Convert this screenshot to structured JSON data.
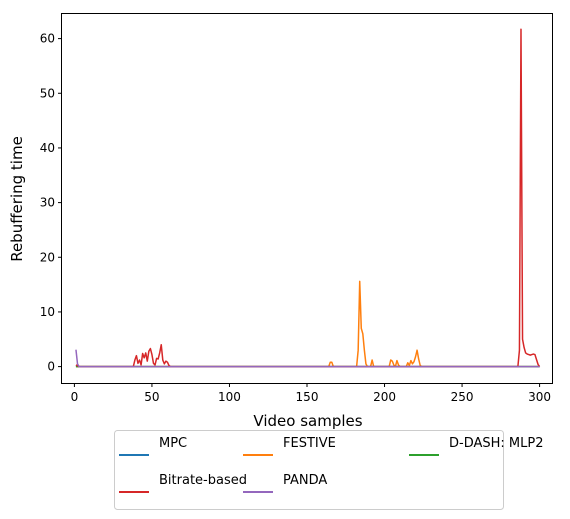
{
  "chart_data": {
    "type": "line",
    "title": "",
    "xlabel": "Video samples",
    "ylabel": "Rebuffering time",
    "xlim": [
      -8,
      308
    ],
    "ylim": [
      -3,
      64.5
    ],
    "xticks": [
      0,
      50,
      100,
      150,
      200,
      250,
      300
    ],
    "yticks": [
      0,
      10,
      20,
      30,
      40,
      50,
      60
    ],
    "grid": false,
    "legend_position": "below plot, centered, 3 columns",
    "series": [
      {
        "name": "MPC",
        "color": "#1f77b4",
        "points": [
          [
            1,
            0.2
          ],
          [
            3,
            0
          ],
          [
            300,
            0
          ]
        ]
      },
      {
        "name": "FESTIVE",
        "color": "#ff7f0e",
        "points": [
          [
            1,
            0
          ],
          [
            164,
            0
          ],
          [
            165,
            0.8
          ],
          [
            166,
            0.8
          ],
          [
            167,
            0
          ],
          [
            182,
            0
          ],
          [
            183,
            3
          ],
          [
            184,
            15.6
          ],
          [
            185,
            7
          ],
          [
            186,
            6
          ],
          [
            187,
            3
          ],
          [
            188,
            0.5
          ],
          [
            189,
            0
          ],
          [
            191,
            0
          ],
          [
            192,
            1.2
          ],
          [
            193,
            0
          ],
          [
            203,
            0
          ],
          [
            204,
            1.2
          ],
          [
            205,
            1
          ],
          [
            206,
            0.3
          ],
          [
            207,
            0
          ],
          [
            208,
            1.1
          ],
          [
            209,
            0.3
          ],
          [
            210,
            0
          ],
          [
            214,
            0
          ],
          [
            215,
            0.7
          ],
          [
            216,
            0.2
          ],
          [
            217,
            1.1
          ],
          [
            218,
            0.5
          ],
          [
            219,
            0.9
          ],
          [
            220,
            1.8
          ],
          [
            221,
            3
          ],
          [
            222,
            1.4
          ],
          [
            223,
            0.2
          ],
          [
            224,
            0
          ],
          [
            300,
            0
          ]
        ]
      },
      {
        "name": "D-DASH: MLP2",
        "color": "#2ca02c",
        "points": [
          [
            1,
            0
          ],
          [
            300,
            0
          ]
        ]
      },
      {
        "name": "Bitrate-based",
        "color": "#d62728",
        "points": [
          [
            1,
            0.3
          ],
          [
            3,
            0
          ],
          [
            38,
            0
          ],
          [
            39,
            1.2
          ],
          [
            40,
            2
          ],
          [
            41,
            0.6
          ],
          [
            42,
            1.2
          ],
          [
            43,
            0.3
          ],
          [
            44,
            2.4
          ],
          [
            45,
            1.6
          ],
          [
            46,
            2.5
          ],
          [
            47,
            1
          ],
          [
            48,
            2.8
          ],
          [
            49,
            3.3
          ],
          [
            50,
            2.2
          ],
          [
            51,
            0.6
          ],
          [
            52,
            0.3
          ],
          [
            53,
            1.5
          ],
          [
            54,
            1.4
          ],
          [
            55,
            2.5
          ],
          [
            56,
            4
          ],
          [
            57,
            1.2
          ],
          [
            58,
            0.5
          ],
          [
            59,
            1
          ],
          [
            60,
            0.8
          ],
          [
            61,
            0.2
          ],
          [
            62,
            0
          ],
          [
            286,
            0
          ],
          [
            287,
            3
          ],
          [
            288,
            61.7
          ],
          [
            289,
            5
          ],
          [
            290,
            3.5
          ],
          [
            291,
            2.5
          ],
          [
            292,
            2.3
          ],
          [
            293,
            2.2
          ],
          [
            294,
            2.1
          ],
          [
            295,
            2.2
          ],
          [
            296,
            2.3
          ],
          [
            297,
            2.2
          ],
          [
            298,
            1.3
          ],
          [
            299,
            0.4
          ],
          [
            300,
            0
          ]
        ]
      },
      {
        "name": "PANDA",
        "color": "#9467bd",
        "points": [
          [
            1,
            3.1
          ],
          [
            2,
            0.5
          ],
          [
            3,
            0
          ],
          [
            300,
            0
          ]
        ]
      }
    ]
  }
}
